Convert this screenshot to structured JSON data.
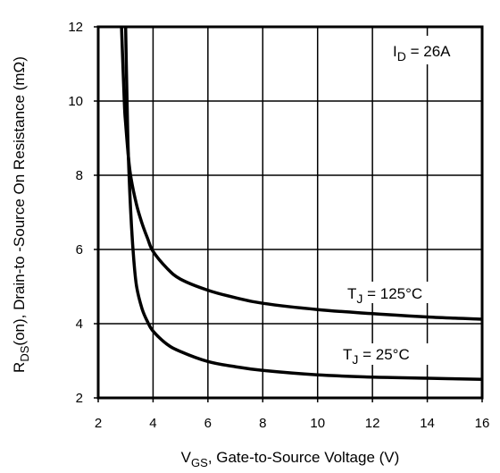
{
  "chart_data": {
    "type": "line",
    "xlabel": {
      "main": "V",
      "sub": "GS",
      "rest": ", Gate-to-Source Voltage (V)"
    },
    "ylabel": {
      "main": "R",
      "sub": "DS",
      "rest": "(on),  Drain-to -Source On Resistance (mΩ)"
    },
    "xlim": [
      2,
      16
    ],
    "ylim": [
      2,
      12
    ],
    "xticks": [
      2,
      4,
      6,
      8,
      10,
      12,
      14,
      16
    ],
    "yticks": [
      2,
      4,
      6,
      8,
      10,
      12
    ],
    "grid": true,
    "annotations": [
      {
        "main": "I",
        "sub": "D",
        "rest": " = 26A"
      }
    ],
    "series": [
      {
        "name": {
          "main": "T",
          "sub": "J",
          "rest": " = 125°C"
        },
        "x": [
          2.85,
          2.95,
          3.0,
          3.1,
          3.2,
          3.4,
          3.6,
          3.8,
          4.0,
          4.5,
          5.0,
          6.0,
          7.0,
          8.0,
          10.0,
          12.0,
          14.0,
          16.0
        ],
        "y": [
          12.0,
          10.0,
          9.4,
          8.5,
          7.9,
          7.2,
          6.7,
          6.3,
          5.95,
          5.5,
          5.2,
          4.9,
          4.7,
          4.55,
          4.38,
          4.27,
          4.18,
          4.12
        ]
      },
      {
        "name": {
          "main": "T",
          "sub": "J",
          "rest": " = 25°C"
        },
        "x": [
          3.0,
          3.05,
          3.1,
          3.2,
          3.3,
          3.4,
          3.6,
          3.8,
          4.0,
          4.5,
          5.0,
          6.0,
          7.0,
          8.0,
          10.0,
          12.0,
          14.0,
          16.0
        ],
        "y": [
          12.0,
          10.0,
          8.5,
          6.8,
          5.7,
          5.0,
          4.4,
          4.05,
          3.8,
          3.45,
          3.25,
          2.98,
          2.84,
          2.74,
          2.62,
          2.56,
          2.53,
          2.5
        ]
      }
    ]
  }
}
